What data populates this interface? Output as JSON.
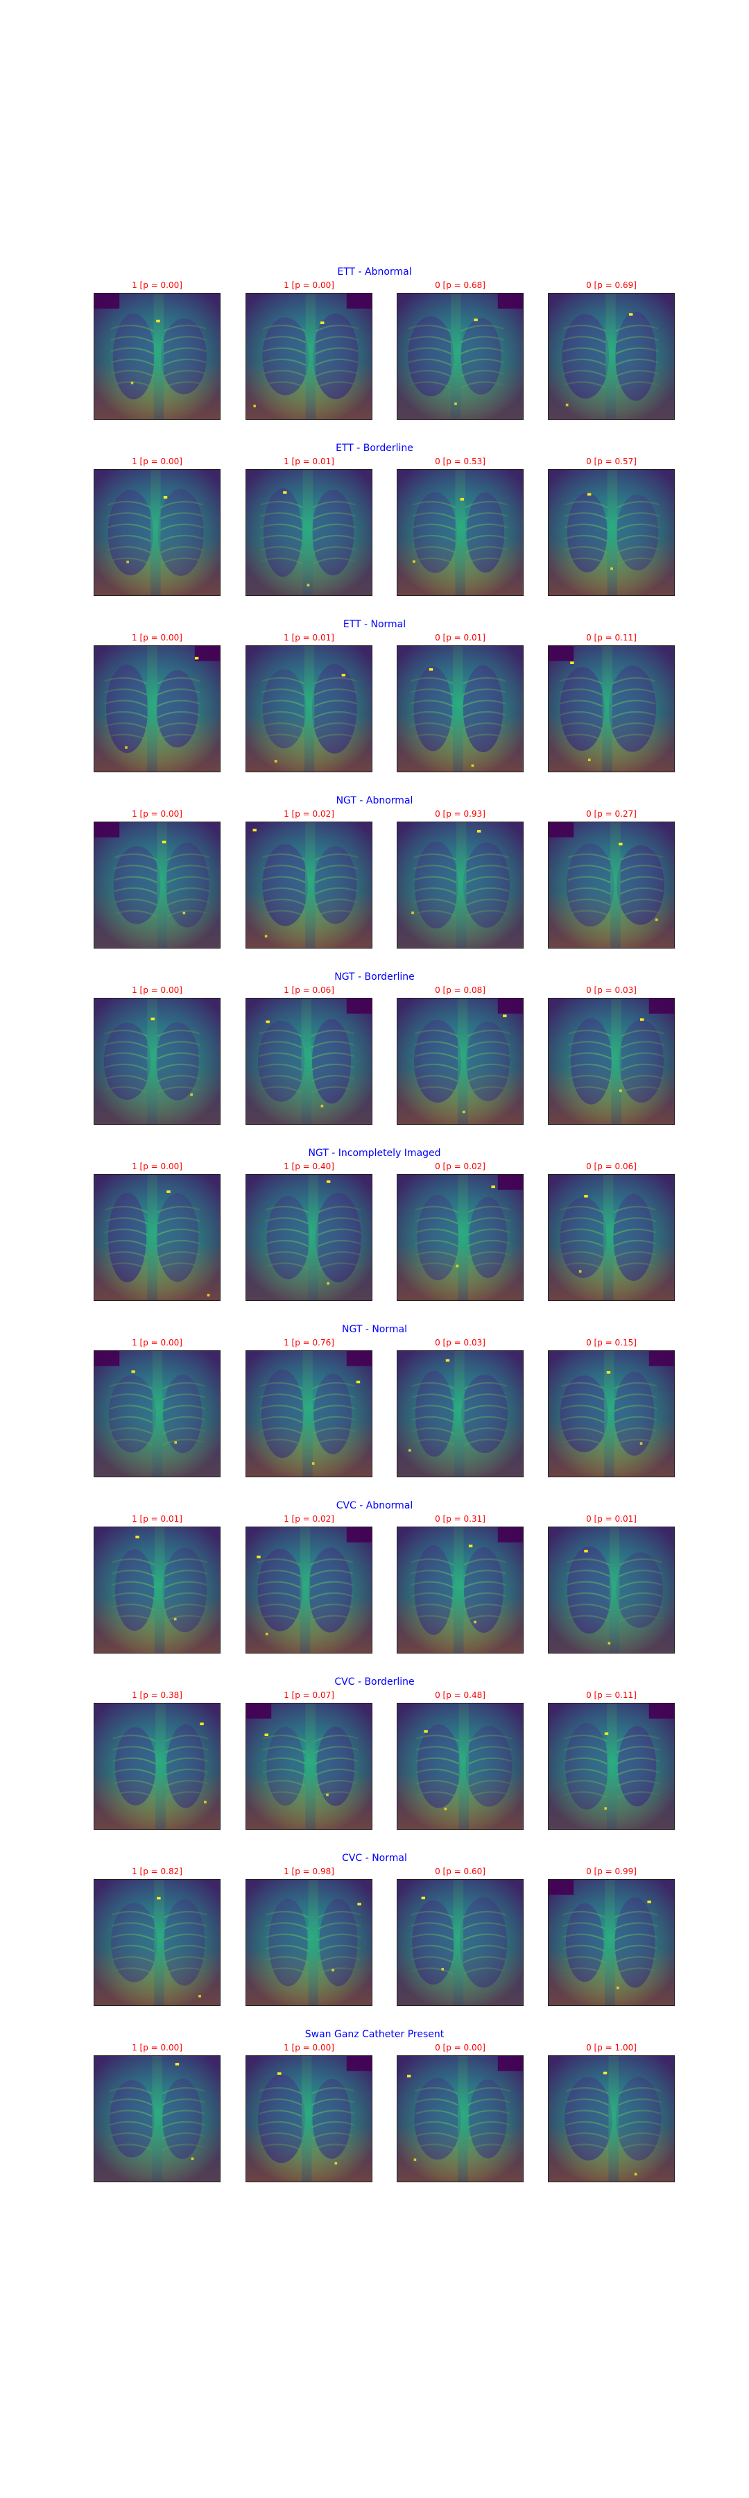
{
  "sections": [
    {
      "title": "ETT - Abnormal",
      "captions": [
        "1 [p = 0.00]",
        "1 [p = 0.00]",
        "0 [p = 0.68]",
        "0 [p = 0.69]"
      ]
    },
    {
      "title": "ETT - Borderline",
      "captions": [
        "1 [p = 0.00]",
        "1 [p = 0.01]",
        "0 [p = 0.53]",
        "0 [p = 0.57]"
      ]
    },
    {
      "title": "ETT - Normal",
      "captions": [
        "1 [p = 0.00]",
        "1 [p = 0.01]",
        "0 [p = 0.01]",
        "0 [p = 0.11]"
      ]
    },
    {
      "title": "NGT - Abnormal",
      "captions": [
        "1 [p = 0.00]",
        "1 [p = 0.02]",
        "0 [p = 0.93]",
        "0 [p = 0.27]"
      ]
    },
    {
      "title": "NGT - Borderline",
      "captions": [
        "1 [p = 0.00]",
        "1 [p = 0.06]",
        "0 [p = 0.08]",
        "0 [p = 0.03]"
      ]
    },
    {
      "title": "NGT - Incompletely Imaged",
      "captions": [
        "1 [p = 0.00]",
        "1 [p = 0.40]",
        "0 [p = 0.02]",
        "0 [p = 0.06]"
      ]
    },
    {
      "title": "NGT - Normal",
      "captions": [
        "1 [p = 0.00]",
        "1 [p = 0.76]",
        "0 [p = 0.03]",
        "0 [p = 0.15]"
      ]
    },
    {
      "title": "CVC - Abnormal",
      "captions": [
        "1 [p = 0.01]",
        "1 [p = 0.02]",
        "0 [p = 0.31]",
        "0 [p = 0.01]"
      ]
    },
    {
      "title": "CVC - Borderline",
      "captions": [
        "1 [p = 0.38]",
        "1 [p = 0.07]",
        "0 [p = 0.48]",
        "0 [p = 0.11]"
      ]
    },
    {
      "title": "CVC - Normal",
      "captions": [
        "1 [p = 0.82]",
        "1 [p = 0.98]",
        "0 [p = 0.60]",
        "0 [p = 0.99]"
      ]
    },
    {
      "title": "Swan Ganz Catheter Present",
      "captions": [
        "1 [p = 0.00]",
        "1 [p = 0.00]",
        "0 [p = 0.00]",
        "0 [p = 1.00]"
      ]
    }
  ],
  "colors": {
    "title": "#0000ff",
    "caption": "#ff0000",
    "background": "#ffffff",
    "colormap": [
      "#440154",
      "#3b528b",
      "#21918c",
      "#5ec962",
      "#fde725"
    ]
  }
}
